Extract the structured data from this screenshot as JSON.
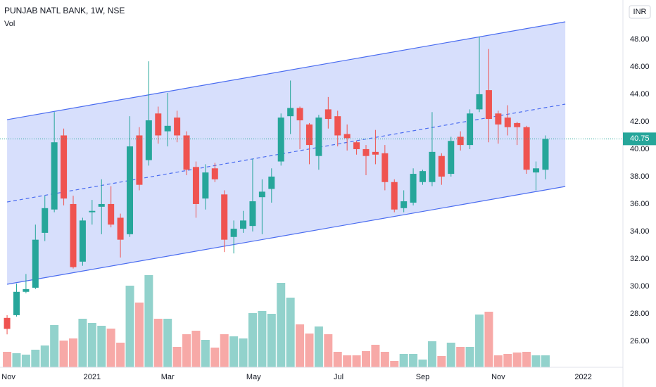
{
  "chart_data": {
    "type": "candlestick",
    "title": "PUNJAB NATL BANK, 1W, NSE",
    "volume_label": "Vol",
    "currency": "INR",
    "up_color": "#26a69a",
    "down_color": "#ef5350",
    "open": [
      27.7,
      27.9,
      29.6,
      29.9,
      33.9,
      35.6,
      41.0,
      36.0,
      31.8,
      35.4,
      35.8,
      36.0,
      35.0,
      33.8,
      41.0,
      39.2,
      42.6,
      41.3,
      42.3,
      41.0,
      38.7,
      36.4,
      38.6,
      36.7,
      33.6,
      34.2,
      34.4,
      36.5,
      37.1,
      39.1,
      42.4,
      43.0,
      41.8,
      39.5,
      42.9,
      42.4,
      41.1,
      40.5,
      40.0,
      39.8,
      39.7,
      37.6,
      35.7,
      36.1,
      37.6,
      37.6,
      39.5,
      38.2,
      40.9,
      40.3,
      42.9,
      44.3,
      42.6,
      42.3,
      41.9,
      41.6,
      38.3,
      38.5
    ],
    "high": [
      27.9,
      30.2,
      30.9,
      34.5,
      36.6,
      42.7,
      41.5,
      36.6,
      35.0,
      36.3,
      37.8,
      37.3,
      35.3,
      42.4,
      41.6,
      46.4,
      43.1,
      44.1,
      42.8,
      41.3,
      39.1,
      38.9,
      39.0,
      37.0,
      34.8,
      35.5,
      39.3,
      37.8,
      38.6,
      42.6,
      45.0,
      43.1,
      41.9,
      42.5,
      43.8,
      42.8,
      41.8,
      40.6,
      40.3,
      41.4,
      40.3,
      37.8,
      37.0,
      38.6,
      38.5,
      42.7,
      39.7,
      40.9,
      41.3,
      42.9,
      48.2,
      47.3,
      42.8,
      43.2,
      42.0,
      41.7,
      39.1,
      41.0
    ],
    "low": [
      26.5,
      27.8,
      29.5,
      29.8,
      33.3,
      35.4,
      35.9,
      31.3,
      31.5,
      34.5,
      33.8,
      34.3,
      32.1,
      33.6,
      37.0,
      38.8,
      40.4,
      40.2,
      40.5,
      38.1,
      35.0,
      35.6,
      37.6,
      32.5,
      32.4,
      33.9,
      34.0,
      33.8,
      36.1,
      38.8,
      41.1,
      40.0,
      38.9,
      38.5,
      41.5,
      40.2,
      39.9,
      39.6,
      38.1,
      38.9,
      37.0,
      35.4,
      35.4,
      35.9,
      37.4,
      37.3,
      37.4,
      38.0,
      39.9,
      40.0,
      42.7,
      40.5,
      40.4,
      41.0,
      40.3,
      38.2,
      37.0,
      37.8
    ],
    "close": [
      26.9,
      29.6,
      29.8,
      33.4,
      35.7,
      40.5,
      36.4,
      31.4,
      34.8,
      35.5,
      36.0,
      34.5,
      33.4,
      40.2,
      37.4,
      42.1,
      41.0,
      41.7,
      41.0,
      38.5,
      36.0,
      38.3,
      37.8,
      33.4,
      34.2,
      34.8,
      36.2,
      36.9,
      38.0,
      42.3,
      43.0,
      42.1,
      40.3,
      42.3,
      42.2,
      41.0,
      40.8,
      40.0,
      39.5,
      39.6,
      37.6,
      35.6,
      36.2,
      38.2,
      38.4,
      39.8,
      38.0,
      40.6,
      40.3,
      42.6,
      44.0,
      42.2,
      41.8,
      41.6,
      41.6,
      38.5,
      38.6,
      40.75
    ],
    "volume": [
      22,
      20,
      18,
      25,
      31,
      60,
      38,
      41,
      69,
      63,
      59,
      55,
      35,
      116,
      92,
      131,
      69,
      69,
      29,
      47,
      52,
      39,
      28,
      47,
      44,
      41,
      77,
      80,
      76,
      120,
      99,
      61,
      48,
      58,
      47,
      22,
      17,
      17,
      23,
      32,
      22,
      9,
      19,
      19,
      11,
      37,
      16,
      35,
      29,
      29,
      75,
      79,
      17,
      19,
      21,
      22,
      17,
      17
    ],
    "vlim": [
      0,
      140
    ],
    "xlim": [
      -0.75,
      65.2
    ],
    "xticks": [
      {
        "value": 0.15,
        "label": "Nov"
      },
      {
        "value": 9.0,
        "label": "2021"
      },
      {
        "value": 17.0,
        "label": "Mar"
      },
      {
        "value": 26.1,
        "label": "May"
      },
      {
        "value": 35.1,
        "label": "Jul"
      },
      {
        "value": 44.0,
        "label": "Sep"
      },
      {
        "value": 52.0,
        "label": "Nov"
      },
      {
        "value": 61.0,
        "label": "2022"
      }
    ],
    "ylim": [
      24.1,
      50.87
    ],
    "yticks": [
      {
        "value": 26,
        "label": "26.00"
      },
      {
        "value": 28,
        "label": "28.00"
      },
      {
        "value": 30,
        "label": "30.00"
      },
      {
        "value": 32,
        "label": "32.00"
      },
      {
        "value": 34,
        "label": "34.00"
      },
      {
        "value": 36,
        "label": "36.00"
      },
      {
        "value": 38,
        "label": "38.00"
      },
      {
        "value": 40,
        "label": "40.00"
      },
      {
        "value": 42,
        "label": "42.00"
      },
      {
        "value": 44,
        "label": "44.00"
      },
      {
        "value": 46,
        "label": "46.00"
      },
      {
        "value": 48,
        "label": "48.00"
      }
    ],
    "grid": false,
    "channel": {
      "x": [
        0,
        59.1
      ],
      "upper": [
        42.15,
        49.28
      ],
      "middle": [
        36.15,
        43.28
      ],
      "lower": [
        30.15,
        37.28
      ],
      "color": "#4a6cf0"
    },
    "last_price": 40.75
  }
}
